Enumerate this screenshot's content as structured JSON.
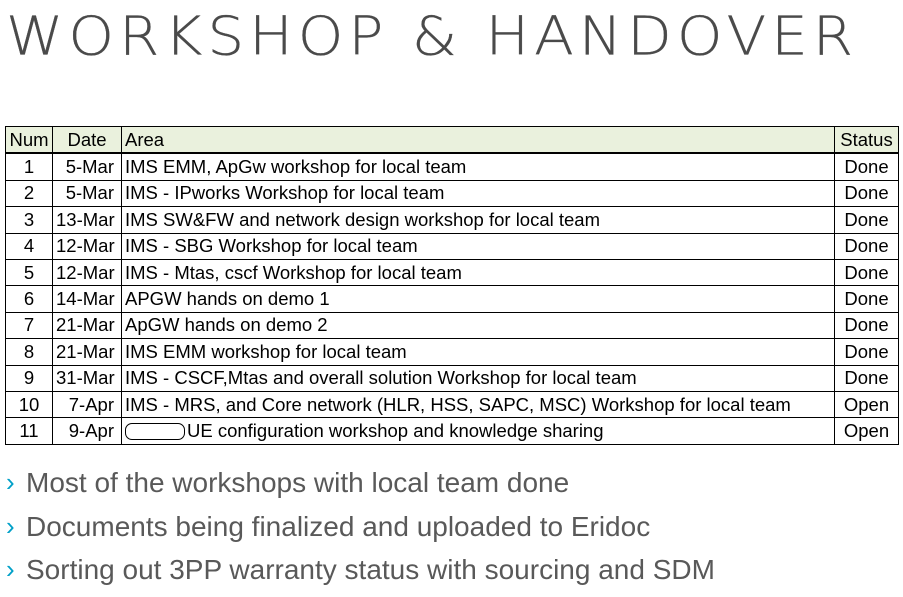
{
  "title": "WORKSHOP & HANDOVER",
  "table": {
    "headers": {
      "num": "Num",
      "date": "Date",
      "area": "Area",
      "status": "Status"
    },
    "header_bg": "#eaf1dd",
    "rows": [
      {
        "num": "1",
        "date": "5-Mar",
        "area": "IMS EMM, ApGw workshop for local team",
        "status": "Done"
      },
      {
        "num": "2",
        "date": "5-Mar",
        "area": "IMS - IPworks Workshop for local team",
        "status": "Done"
      },
      {
        "num": "3",
        "date": "13-Mar",
        "area": "IMS SW&FW and network design workshop for local team",
        "status": "Done"
      },
      {
        "num": "4",
        "date": "12-Mar",
        "area": "IMS - SBG Workshop for local team",
        "status": "Done"
      },
      {
        "num": "5",
        "date": "12-Mar",
        "area": "IMS - Mtas, cscf Workshop for local team",
        "status": "Done"
      },
      {
        "num": "6",
        "date": "14-Mar",
        "area": "APGW hands on demo 1",
        "status": "Done"
      },
      {
        "num": "7",
        "date": "21-Mar",
        "area": "ApGW hands on demo 2",
        "status": "Done"
      },
      {
        "num": "8",
        "date": "21-Mar",
        "area": "IMS EMM workshop for local team",
        "status": "Done"
      },
      {
        "num": "9",
        "date": "31-Mar",
        "area": "IMS - CSCF,Mtas and overall solution Workshop for local team",
        "status": "Done"
      },
      {
        "num": "10",
        "date": "7-Apr",
        "area": "IMS -  MRS, and Core network (HLR, HSS, SAPC, MSC) Workshop for local team",
        "status": "Open"
      },
      {
        "num": "11",
        "date": "9-Apr",
        "area": "UE configuration workshop and knowledge sharing",
        "status": "Open",
        "redacted_prefix": true
      }
    ]
  },
  "bullets": {
    "marker_icon": "chevron-right-icon",
    "marker_glyph": "›",
    "marker_color": "#00a0c8",
    "text_color": "#595959",
    "items": [
      "Most of the workshops with local team done",
      "Documents being finalized and uploaded to Eridoc",
      "Sorting out 3PP warranty status with sourcing and SDM"
    ]
  }
}
